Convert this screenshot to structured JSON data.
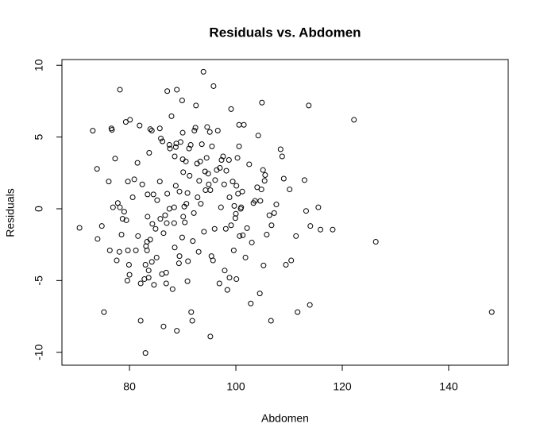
{
  "chart_data": {
    "type": "scatter",
    "title": "Residuals vs. Abdomen",
    "x_label": "Abdomen",
    "y_label": "Residuals",
    "xlim": [
      67.3,
      151.2
    ],
    "ylim": [
      -10.9,
      10.4
    ],
    "xticks": [
      80,
      100,
      120,
      140
    ],
    "yticks": [
      -10,
      -5,
      0,
      5,
      10
    ],
    "color": "#000000",
    "x": [
      70.6,
      73.1,
      73.9,
      74.0,
      74.8,
      75.2,
      76.1,
      76.3,
      76.6,
      76.7,
      76.9,
      77.3,
      77.6,
      77.8,
      78.1,
      78.2,
      78.2,
      78.5,
      78.7,
      79.0,
      79.3,
      79.4,
      79.6,
      79.7,
      79.7,
      79.9,
      80.0,
      80.1,
      80.6,
      80.9,
      81.2,
      81.5,
      81.6,
      81.9,
      82.1,
      82.1,
      82.4,
      82.8,
      83.0,
      83.0,
      83.1,
      83.3,
      83.3,
      83.4,
      83.4,
      83.6,
      83.6,
      83.7,
      83.9,
      83.9,
      84.2,
      84.2,
      84.3,
      84.5,
      84.6,
      84.9,
      85.1,
      85.2,
      85.7,
      85.7,
      85.8,
      85.9,
      86.1,
      86.2,
      86.4,
      86.4,
      86.7,
      86.9,
      86.9,
      87.0,
      87.1,
      87.1,
      87.5,
      87.5,
      87.6,
      87.9,
      88.1,
      88.4,
      88.4,
      88.5,
      88.5,
      88.7,
      88.7,
      88.8,
      88.9,
      88.9,
      89.3,
      89.4,
      89.4,
      89.6,
      89.9,
      89.9,
      90.0,
      90.0,
      90.1,
      90.1,
      90.3,
      90.4,
      90.6,
      90.7,
      90.9,
      90.9,
      91.0,
      91.2,
      91.3,
      91.5,
      91.6,
      91.8,
      91.9,
      92.1,
      92.2,
      92.4,
      92.5,
      92.7,
      92.8,
      93.0,
      93.1,
      93.3,
      93.4,
      93.6,
      93.9,
      94.0,
      94.2,
      94.3,
      94.5,
      94.6,
      94.8,
      94.9,
      95.1,
      95.2,
      95.2,
      95.4,
      95.5,
      95.7,
      95.8,
      96.0,
      96.1,
      96.4,
      96.6,
      96.9,
      97.0,
      97.2,
      97.3,
      97.6,
      97.8,
      97.9,
      98.1,
      98.2,
      98.4,
      98.7,
      98.8,
      98.8,
      99.1,
      99.1,
      99.4,
      99.6,
      99.7,
      99.9,
      100.0,
      100.1,
      100.1,
      100.3,
      100.4,
      100.6,
      100.6,
      100.7,
      100.9,
      101.0,
      101.2,
      101.3,
      101.5,
      101.8,
      102.1,
      102.5,
      102.8,
      103.0,
      103.3,
      103.6,
      104.0,
      104.2,
      104.5,
      104.6,
      104.8,
      104.9,
      105.1,
      105.2,
      105.4,
      105.5,
      105.8,
      106.3,
      106.6,
      106.7,
      107.2,
      107.6,
      108.4,
      108.7,
      109.0,
      109.4,
      110.1,
      110.4,
      111.3,
      111.6,
      112.9,
      113.2,
      113.7,
      113.9,
      114.0,
      115.5,
      115.9,
      118.2,
      122.2,
      126.3,
      148.1
    ],
    "values": [
      -1.33,
      5.44,
      2.78,
      -2.1,
      -1.2,
      -7.2,
      1.9,
      -2.9,
      5.6,
      5.5,
      0.1,
      3.5,
      -3.6,
      0.4,
      -3.0,
      8.3,
      0.1,
      -1.8,
      -0.7,
      -0.2,
      6.05,
      -0.8,
      -5.0,
      1.9,
      -2.9,
      -3.9,
      -4.6,
      6.2,
      0.8,
      2.05,
      -2.9,
      3.2,
      -1.9,
      5.8,
      -7.8,
      -5.2,
      1.7,
      -4.9,
      -10.05,
      -3.9,
      -2.6,
      -2.3,
      -2.9,
      1.0,
      -0.55,
      -4.3,
      -4.8,
      3.9,
      5.55,
      -2.15,
      5.45,
      -3.7,
      -1.05,
      1.0,
      -5.3,
      -1.4,
      -3.4,
      0.6,
      5.6,
      1.9,
      -0.7,
      4.9,
      -4.55,
      4.7,
      -1.7,
      -8.2,
      -0.45,
      -5.2,
      -4.45,
      -1.0,
      1.05,
      8.2,
      4.45,
      0,
      4.2,
      6.45,
      -5.6,
      0.1,
      -1.0,
      3.65,
      -2.7,
      1.6,
      4.3,
      4.55,
      8.3,
      -8.5,
      -3.8,
      1.2,
      -3.3,
      4.65,
      -2.0,
      7.55,
      5.3,
      3.45,
      2.55,
      -0.55,
      0.15,
      -0.95,
      3.3,
      0.35,
      -5.05,
      1.1,
      -3.65,
      4.2,
      2.3,
      4.45,
      -7.2,
      -7.8,
      -2.25,
      -0.3,
      5.45,
      5.65,
      7.2,
      3.15,
      0.8,
      -3.0,
      1.95,
      3.3,
      0.35,
      4.5,
      9.55,
      -1.6,
      2.6,
      1.3,
      3.55,
      5.7,
      2.45,
      1.7,
      5.35,
      -8.9,
      1.3,
      -3.3,
      4.35,
      -3.6,
      8.55,
      -1.4,
      2.0,
      2.7,
      5.45,
      -5.2,
      2.85,
      0.1,
      3.4,
      3.65,
      1.7,
      -4.3,
      -1.4,
      2.65,
      -5.65,
      3.4,
      0.8,
      -4.8,
      6.95,
      -1.15,
      1.9,
      -2.9,
      0.2,
      -0.65,
      -0.35,
      -4.9,
      1.6,
      3.55,
      1.05,
      5.85,
      4.35,
      -1.9,
      0,
      0.1,
      1.2,
      -1.85,
      5.85,
      -3.4,
      -1.35,
      3.1,
      -6.6,
      -2.35,
      0.4,
      0.55,
      1.5,
      5.1,
      -5.9,
      0.55,
      1.35,
      7.4,
      2.7,
      -3.95,
      1.95,
      2.35,
      -1.8,
      -0.45,
      -7.8,
      -1.15,
      -0.3,
      0.3,
      4.15,
      3.65,
      2.1,
      -3.9,
      1.35,
      -3.6,
      -1.9,
      -7.2,
      2.0,
      -0.15,
      7.2,
      -6.7,
      -1.2,
      0.1,
      -1.45,
      -1.45,
      6.2,
      -2.3,
      -7.2
    ]
  }
}
